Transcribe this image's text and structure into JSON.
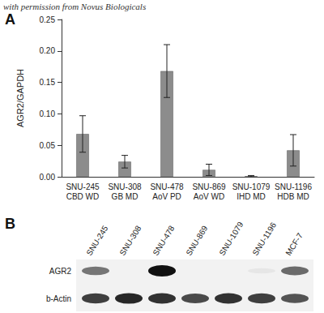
{
  "watermark": "with permission from Novus Biologicals",
  "chart_data": {
    "type": "bar",
    "panel_label": "A",
    "y_label": "AGR2/GAPDH",
    "categories": [
      "SNU-245\nCBD WD",
      "SNU-308\nGB MD",
      "SNU-478\nAoV PD",
      "SNU-869\nAoV WD",
      "SNU-1079\nIHD MD",
      "SNU-1196\nHDB MD"
    ],
    "values": [
      0.068,
      0.024,
      0.168,
      0.011,
      0.001,
      0.042
    ],
    "errors": [
      0.029,
      0.01,
      0.042,
      0.009,
      0.001,
      0.025
    ],
    "color": "#8c8c8c",
    "ylim": [
      0,
      0.25
    ],
    "yticks": [
      {
        "value": 0,
        "label": "0.00"
      },
      {
        "value": 0.05,
        "label": "0.05"
      },
      {
        "value": 0.1,
        "label": "0.10"
      },
      {
        "value": 0.15,
        "label": "0.15"
      },
      {
        "value": 0.2,
        "label": "0.20"
      },
      {
        "value": 0.25,
        "label": "0.25"
      }
    ],
    "grid": false
  },
  "blot": {
    "panel_label": "B",
    "lanes": [
      "SNU-245",
      "SNU-308",
      "SNU-478",
      "SNU-869",
      "SNU-1079",
      "SNU-1196",
      "MCF-7"
    ],
    "rows": [
      {
        "label": "AGR2",
        "intensity": [
          0.55,
          0,
          1,
          0,
          0,
          0.05,
          0.6
        ]
      },
      {
        "label": "b-Actin",
        "intensity": [
          0.8,
          0.9,
          0.85,
          0.75,
          0.85,
          0.8,
          0.7
        ]
      }
    ]
  }
}
